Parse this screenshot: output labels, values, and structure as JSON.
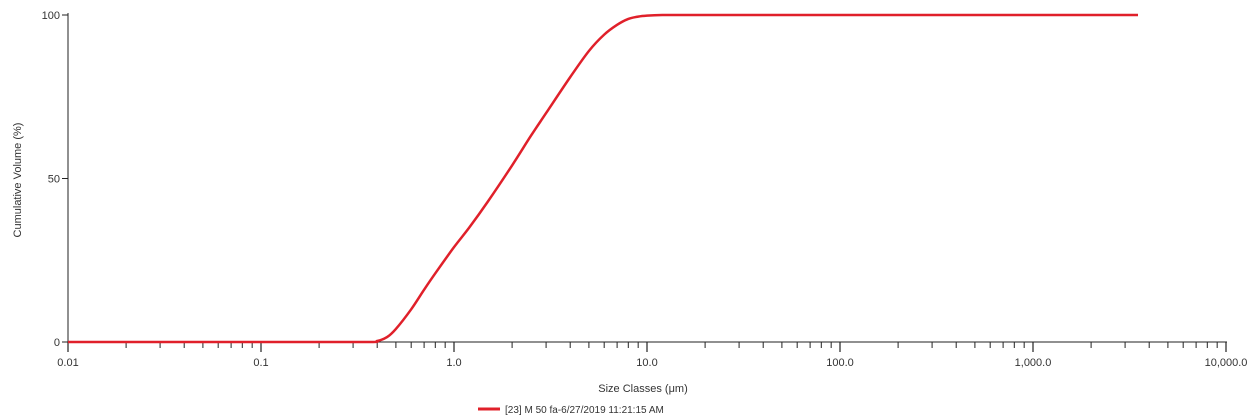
{
  "chart_data": {
    "type": "line",
    "title": "",
    "xlabel": "Size Classes (μm)",
    "ylabel": "Cumulative Volume (%)",
    "x_scale": "log",
    "xlim": [
      0.01,
      10000
    ],
    "ylim": [
      0,
      100
    ],
    "x_ticks": [
      {
        "value": 0.01,
        "label": "0.01"
      },
      {
        "value": 0.1,
        "label": "0.1"
      },
      {
        "value": 1,
        "label": "1.0"
      },
      {
        "value": 10,
        "label": "10.0"
      },
      {
        "value": 100,
        "label": "100.0"
      },
      {
        "value": 1000,
        "label": "1,000.0"
      },
      {
        "value": 10000,
        "label": "10,000.0"
      }
    ],
    "y_ticks": [
      {
        "value": 0,
        "label": "0"
      },
      {
        "value": 50,
        "label": "50"
      },
      {
        "value": 100,
        "label": "100"
      }
    ],
    "grid": false,
    "legend_position": "bottom-center",
    "series": [
      {
        "name": "[23] M 50 fa-6/27/2019 11:21:15 AM",
        "color": "#e0202a",
        "x": [
          0.01,
          0.1,
          0.35,
          0.4,
          0.45,
          0.5,
          0.6,
          0.7,
          0.8,
          1.0,
          1.2,
          1.5,
          2.0,
          2.5,
          3.0,
          4.0,
          5.0,
          6.0,
          7.0,
          8.0,
          9.0,
          10.0,
          12.0,
          15.0,
          20.0,
          50.0,
          100.0,
          1000.0,
          3500.0
        ],
        "y": [
          0,
          0,
          0,
          0.3,
          1.5,
          4.0,
          10.0,
          16.0,
          21.0,
          29.0,
          35.0,
          43.0,
          54.0,
          63.0,
          70.0,
          81.0,
          89.0,
          94.0,
          97.0,
          98.8,
          99.5,
          99.8,
          100.0,
          100.0,
          100.0,
          100.0,
          100.0,
          100.0,
          100.0
        ]
      }
    ]
  }
}
